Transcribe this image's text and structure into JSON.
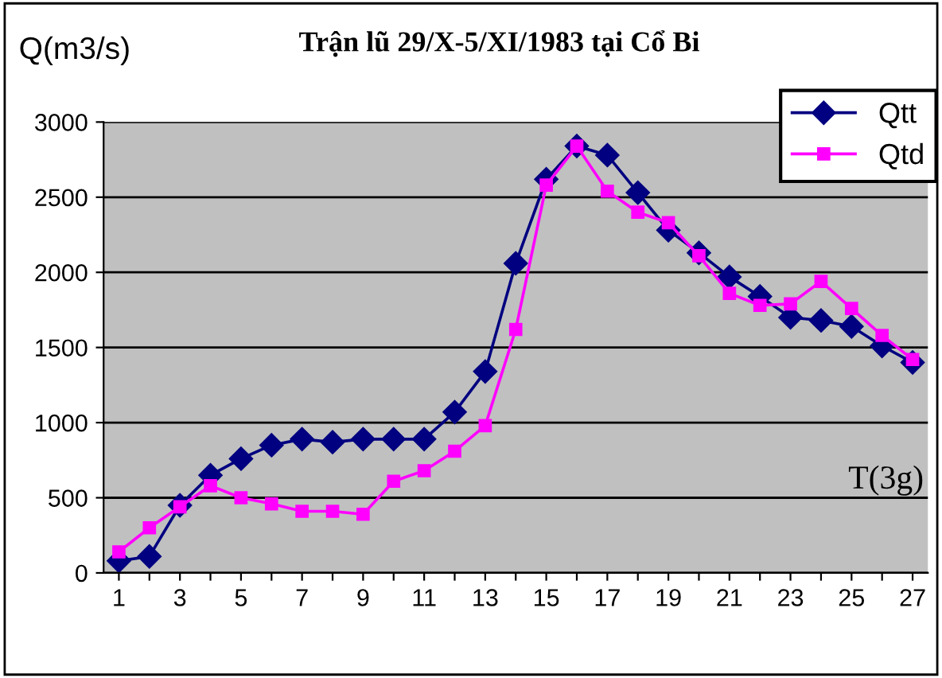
{
  "chart_data": {
    "type": "line",
    "title": "Trận lũ 29/X-5/XI/1983 tại Cổ Bi",
    "ylabel": "Q(m3/s)",
    "xlabel": "T(3g)",
    "categories": [
      "1",
      null,
      "3",
      null,
      "5",
      null,
      "7",
      null,
      "9",
      null,
      "11",
      null,
      "13",
      null,
      "15",
      null,
      "17",
      null,
      "19",
      null,
      "21",
      null,
      "23",
      null,
      "25",
      null,
      "27"
    ],
    "series": [
      {
        "name": "Qtt",
        "color": "#000080",
        "marker": "diamond",
        "values": [
          80,
          110,
          450,
          650,
          760,
          850,
          890,
          870,
          890,
          890,
          890,
          1070,
          1340,
          2060,
          2620,
          2840,
          2780,
          2530,
          2280,
          2130,
          1970,
          1840,
          1700,
          1680,
          1640,
          1510,
          1400
        ]
      },
      {
        "name": "Qtd",
        "color": "#ff00ff",
        "marker": "square",
        "values": [
          140,
          300,
          440,
          580,
          500,
          460,
          410,
          410,
          390,
          610,
          680,
          810,
          980,
          1620,
          2580,
          2840,
          2540,
          2400,
          2330,
          2110,
          1860,
          1780,
          1790,
          1940,
          1760,
          1580,
          1420
        ]
      }
    ],
    "ylim": [
      0,
      3000
    ],
    "yticks": [
      0,
      500,
      1000,
      1500,
      2000,
      2500,
      3000
    ],
    "grid": "y",
    "legend": "top right"
  }
}
